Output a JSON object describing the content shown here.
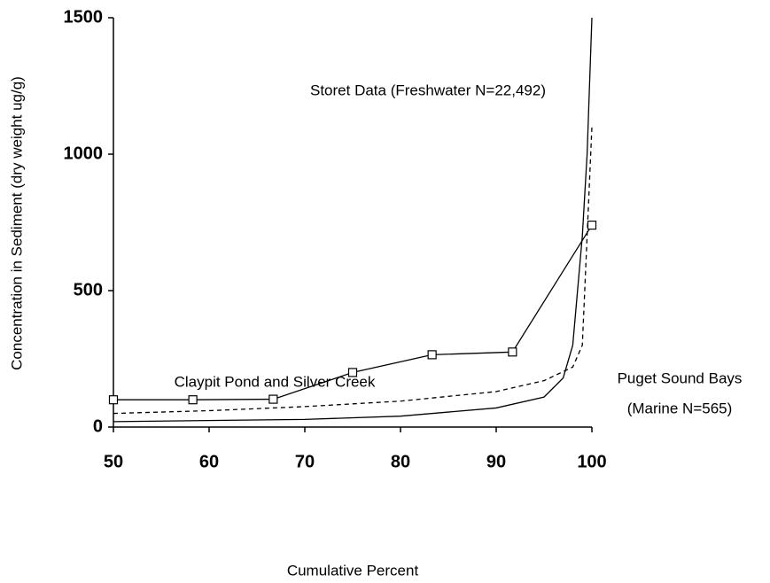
{
  "chart_data": {
    "type": "line",
    "xlabel": "Cumulative Percent",
    "ylabel": "Concentration in Sediment (dry weight ug/g)",
    "xlim": [
      50,
      100
    ],
    "xticks": [
      50,
      60,
      70,
      80,
      90,
      100
    ],
    "ylim": [
      0,
      1500
    ],
    "yticks": [
      0,
      500,
      1000,
      1500
    ],
    "annotations": [
      "Storet Data (Freshwater N=22,492)",
      "Claypit Pond and Silver Creek",
      "Puget Sound Bays",
      "(Marine N=565)"
    ],
    "series": [
      {
        "name": "Claypit Pond and Silver Creek",
        "color": "#000000",
        "dash": "solid",
        "marker": "square",
        "x": [
          50,
          58.3,
          66.7,
          75,
          83.3,
          91.7,
          100
        ],
        "values": [
          100,
          100,
          102,
          200,
          265,
          275,
          740
        ]
      },
      {
        "name": "Puget Sound Bays",
        "color": "#000000",
        "dash": "dashed",
        "marker": "none",
        "x": [
          50,
          60,
          70,
          80,
          90,
          95,
          98,
          99,
          100
        ],
        "values": [
          50,
          60,
          75,
          95,
          130,
          170,
          220,
          300,
          1100
        ]
      },
      {
        "name": "Storet Data",
        "color": "#000000",
        "dash": "solid",
        "marker": "none",
        "x": [
          50,
          70,
          80,
          90,
          95,
          97,
          98,
          99,
          99.5,
          100
        ],
        "values": [
          20,
          28,
          40,
          70,
          110,
          180,
          300,
          700,
          1000,
          1500
        ]
      }
    ]
  }
}
